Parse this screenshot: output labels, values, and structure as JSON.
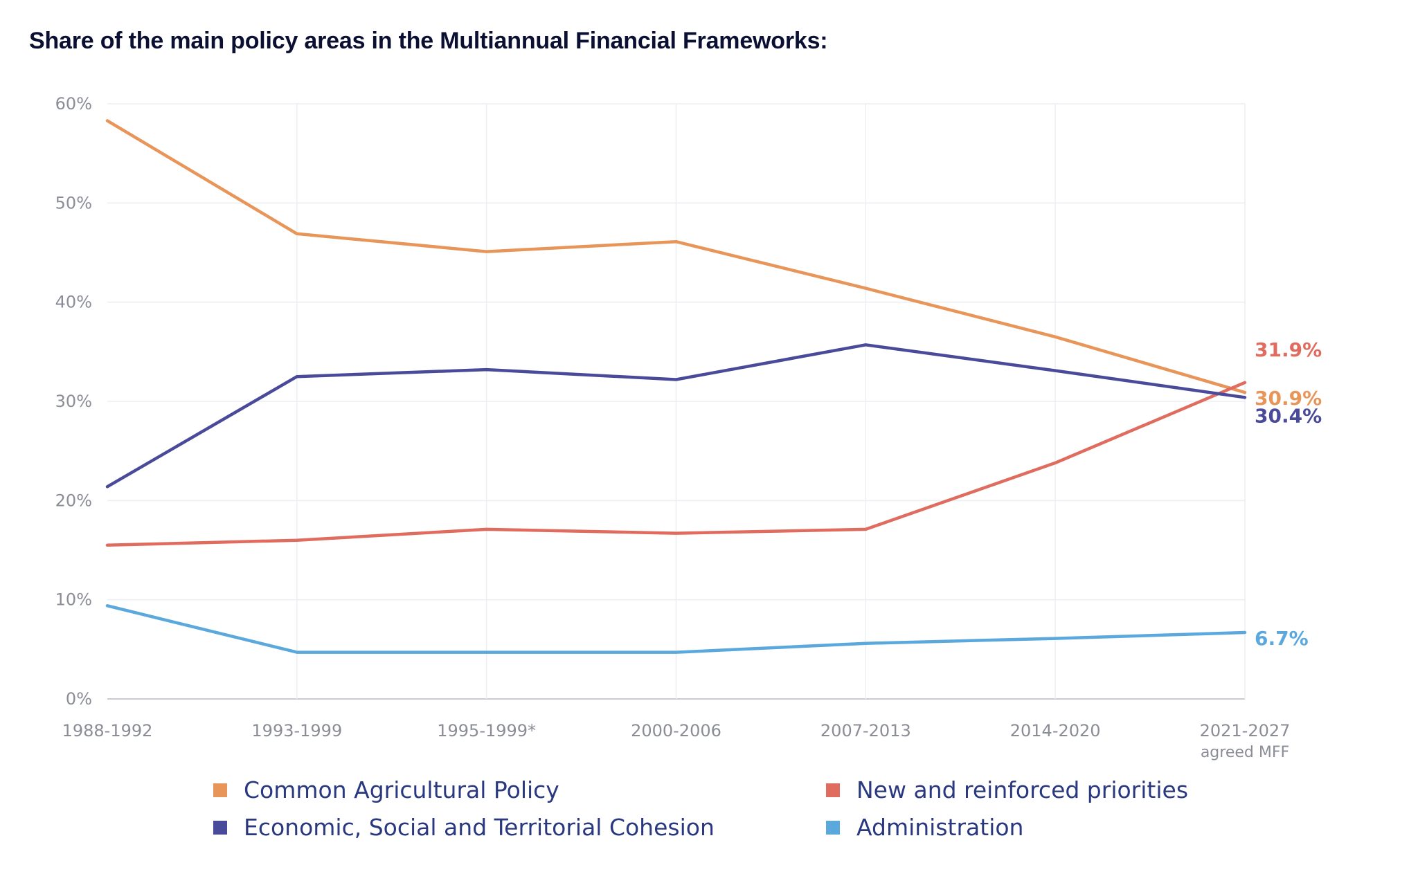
{
  "title": "Share of the main policy areas in the Multiannual Financial Frameworks:",
  "chart_data": {
    "type": "line",
    "categories": [
      "1988-1992",
      "1993-1999",
      "1995-1999*",
      "2000-2006",
      "2007-2013",
      "2014-2020",
      "2021-2027"
    ],
    "category_sublabels": [
      "",
      "",
      "",
      "",
      "",
      "",
      "agreed MFF"
    ],
    "ylim": [
      0,
      60
    ],
    "yticks": [
      0,
      10,
      20,
      30,
      40,
      50,
      60
    ],
    "ytick_labels": [
      "0%",
      "10%",
      "20%",
      "30%",
      "40%",
      "50%",
      "60%"
    ],
    "grid": true,
    "legend_position": "bottom",
    "series": [
      {
        "name": "Common Agricultural Policy",
        "color": "#e8955a",
        "values": [
          58.3,
          46.9,
          45.1,
          46.1,
          41.4,
          36.5,
          30.9
        ],
        "end_label": "30.9%"
      },
      {
        "name": "New and reinforced priorities",
        "color": "#e06c60",
        "values": [
          15.5,
          16.0,
          17.1,
          16.7,
          17.1,
          23.8,
          31.9
        ],
        "end_label": "31.9%"
      },
      {
        "name": "Economic, Social and Territorial Cohesion",
        "color": "#4a4a9a",
        "values": [
          21.4,
          32.5,
          33.2,
          32.2,
          35.7,
          33.1,
          30.4
        ],
        "end_label": "30.4%"
      },
      {
        "name": "Administration",
        "color": "#5ba9dc",
        "values": [
          9.4,
          4.7,
          4.7,
          4.7,
          5.6,
          6.1,
          6.7
        ],
        "end_label": "6.7%"
      }
    ]
  }
}
